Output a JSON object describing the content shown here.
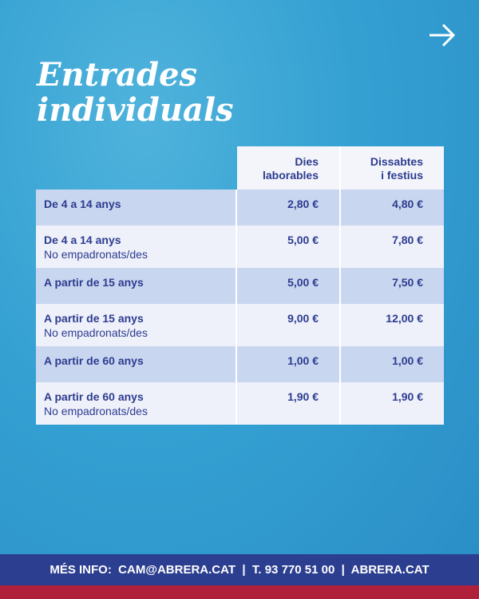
{
  "title": {
    "lines": [
      "Entrades",
      "individuals"
    ]
  },
  "table": {
    "headers": [
      "Dies\nlaborables",
      "Dissabtes\ni festius"
    ],
    "rows": [
      {
        "label": "De 4 a 14 anys",
        "prices": [
          "2,80 €",
          "4,80 €"
        ]
      },
      {
        "label": "De 4 a 14 anys",
        "sublabel": "No empadronats/des",
        "prices": [
          "5,00 €",
          "7,80 €"
        ]
      },
      {
        "label": "A partir de 15 anys",
        "prices": [
          "5,00 €",
          "7,50 €"
        ]
      },
      {
        "label": "A partir de 15 anys",
        "sublabel": "No empadronats/des",
        "prices": [
          "9,00 €",
          "12,00 €"
        ]
      },
      {
        "label": "A partir de 60 anys",
        "prices": [
          "1,00 €",
          "1,00 €"
        ]
      },
      {
        "label": "A partir de 60 anys",
        "sublabel": "No empadronats/des",
        "prices": [
          "1,90 €",
          "1,90 €"
        ]
      }
    ]
  },
  "footer": {
    "text": "MÉS INFO:  CAM@ABRERA.CAT  |  T. 93 770 51 00  |  ABRERA.CAT"
  }
}
